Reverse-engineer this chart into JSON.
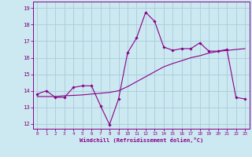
{
  "xlabel": "Windchill (Refroidissement éolien,°C)",
  "background_color": "#cce8f0",
  "grid_color": "#aaccdd",
  "line_color": "#880088",
  "xlim": [
    -0.5,
    23.5
  ],
  "ylim": [
    11.7,
    19.4
  ],
  "yticks": [
    12,
    13,
    14,
    15,
    16,
    17,
    18,
    19
  ],
  "xticks": [
    0,
    1,
    2,
    3,
    4,
    5,
    6,
    7,
    8,
    9,
    10,
    11,
    12,
    13,
    14,
    15,
    16,
    17,
    18,
    19,
    20,
    21,
    22,
    23
  ],
  "line1_x": [
    0,
    1,
    2,
    3,
    4,
    5,
    6,
    7,
    8,
    9,
    10,
    11,
    12,
    13,
    14,
    15,
    16,
    17,
    18,
    19,
    20,
    21,
    22,
    23
  ],
  "line1_y": [
    13.8,
    14.0,
    13.6,
    13.6,
    14.2,
    14.3,
    14.3,
    13.1,
    11.95,
    13.5,
    16.3,
    17.2,
    18.75,
    18.2,
    16.65,
    16.45,
    16.55,
    16.55,
    16.9,
    16.4,
    16.4,
    16.5,
    13.6,
    13.5
  ],
  "line2_x": [
    0,
    1,
    2,
    3,
    4,
    5,
    6,
    7,
    8,
    9,
    10,
    11,
    12,
    13,
    14,
    15,
    16,
    17,
    18,
    19,
    20,
    21,
    22,
    23
  ],
  "line2_y": [
    13.65,
    13.65,
    13.65,
    13.7,
    13.72,
    13.75,
    13.8,
    13.85,
    13.9,
    14.0,
    14.25,
    14.55,
    14.85,
    15.15,
    15.45,
    15.65,
    15.82,
    16.0,
    16.12,
    16.28,
    16.38,
    16.44,
    16.5,
    16.55
  ]
}
